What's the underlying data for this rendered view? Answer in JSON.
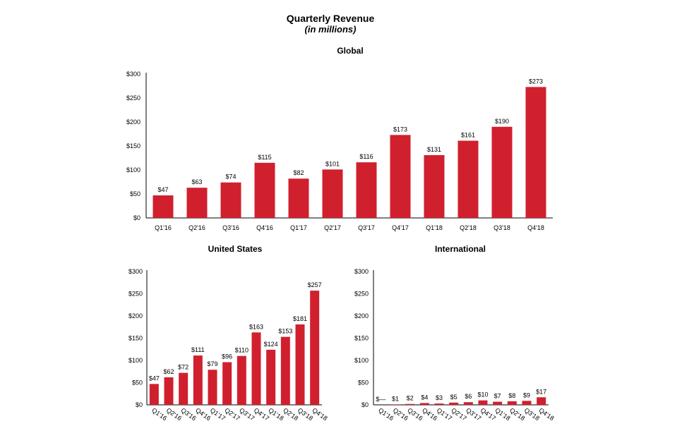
{
  "header": {
    "title": "Quarterly Revenue",
    "subtitle": "(in millions)"
  },
  "colors": {
    "bar": "#d0202e",
    "axis": "#000000"
  },
  "chart_data": [
    {
      "type": "bar",
      "title": "Global",
      "categories": [
        "Q1'16",
        "Q2'16",
        "Q3'16",
        "Q4'16",
        "Q1'17",
        "Q2'17",
        "Q3'17",
        "Q4'17",
        "Q1'18",
        "Q2'18",
        "Q3'18",
        "Q4'18"
      ],
      "values": [
        47,
        63,
        74,
        115,
        82,
        101,
        116,
        173,
        131,
        161,
        190,
        273
      ],
      "data_labels": [
        "$47",
        "$63",
        "$74",
        "$115",
        "$82",
        "$101",
        "$116",
        "$173",
        "$131",
        "$161",
        "$190",
        "$273"
      ],
      "yticks": [
        "$0",
        "$50",
        "$100",
        "$150",
        "$200",
        "$250",
        "$300"
      ],
      "ylim": [
        0,
        300
      ],
      "grid": false
    },
    {
      "type": "bar",
      "title": "United States",
      "categories": [
        "Q1'16",
        "Q2'16",
        "Q3'16",
        "Q4'16",
        "Q1'17",
        "Q2'17",
        "Q3'17",
        "Q4'17",
        "Q1'18",
        "Q2'18",
        "Q3'18",
        "Q4'18"
      ],
      "values": [
        47,
        62,
        72,
        111,
        79,
        96,
        110,
        163,
        124,
        153,
        181,
        257
      ],
      "data_labels": [
        "$47",
        "$62",
        "$72",
        "$111",
        "$79",
        "$96",
        "$110",
        "$163",
        "$124",
        "$153",
        "$181",
        "$257"
      ],
      "yticks": [
        "$0",
        "$50",
        "$100",
        "$150",
        "$200",
        "$250",
        "$300"
      ],
      "ylim": [
        0,
        300
      ],
      "grid": false
    },
    {
      "type": "bar",
      "title": "International",
      "categories": [
        "Q1'16",
        "Q2'16",
        "Q3'16",
        "Q4'16",
        "Q1'17",
        "Q2'17",
        "Q3'17",
        "Q4'17",
        "Q1'18",
        "Q2'18",
        "Q3'18",
        "Q4'18"
      ],
      "values": [
        0,
        1,
        2,
        4,
        3,
        5,
        6,
        10,
        7,
        8,
        9,
        17
      ],
      "data_labels": [
        "$—",
        "$1",
        "$2",
        "$4",
        "$3",
        "$5",
        "$6",
        "$10",
        "$7",
        "$8",
        "$9",
        "$17"
      ],
      "yticks": [
        "$0",
        "$50",
        "$100",
        "$150",
        "$200",
        "$250",
        "$300"
      ],
      "ylim": [
        0,
        300
      ],
      "grid": false
    }
  ]
}
